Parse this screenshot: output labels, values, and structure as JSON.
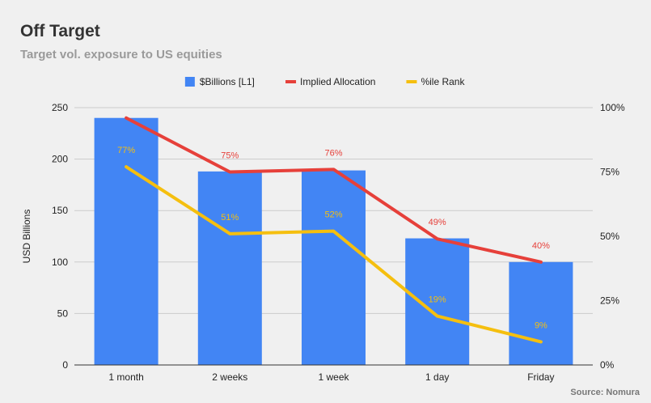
{
  "title": "Off Target",
  "subtitle": "Target vol. exposure to US equities",
  "source": "Source: Nomura",
  "chart_data": {
    "type": "bar",
    "categories": [
      "1 month",
      "2 weeks",
      "1 week",
      "1 day",
      "Friday"
    ],
    "series": [
      {
        "name": "$Billions [L1]",
        "type": "bar",
        "axis": "left",
        "values": [
          240,
          188,
          189,
          123,
          100
        ],
        "color": "#4285f4"
      },
      {
        "name": "Implied Allocation",
        "type": "line",
        "axis": "right",
        "values": [
          0.96,
          0.75,
          0.76,
          0.49,
          0.4
        ],
        "labels": [
          "",
          "75%",
          "76%",
          "49%",
          "40%"
        ],
        "color": "#e6403a"
      },
      {
        "name": "%ile Rank",
        "type": "line",
        "axis": "right",
        "values": [
          0.77,
          0.51,
          0.52,
          0.19,
          0.09
        ],
        "labels": [
          "77%",
          "51%",
          "52%",
          "19%",
          "9%"
        ],
        "color": "#f5bf0f"
      }
    ],
    "ylabel": "USD Billions",
    "ylim": [
      0,
      250
    ],
    "yticks": [
      "0",
      "50",
      "100",
      "150",
      "200",
      "250"
    ],
    "y2lim": [
      0,
      1
    ],
    "y2ticks": [
      "0%",
      "25%",
      "50%",
      "75%",
      "100%"
    ],
    "legend_position": "top-center",
    "grid": true
  }
}
